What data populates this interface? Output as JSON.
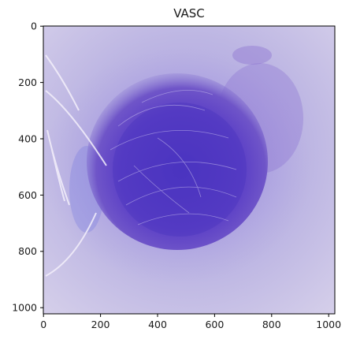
{
  "figure": {
    "title": "VASC",
    "subject": "dermoscopic-lesion",
    "colors": {
      "background": "#bdb6e0",
      "lesion_outer": "#6b4fc9",
      "lesion_core": "#4a35c0",
      "frame": "#000000"
    }
  },
  "axes": {
    "x": {
      "range": [
        0,
        1022
      ],
      "ticks": [
        0,
        200,
        400,
        600,
        800,
        1000
      ]
    },
    "y": {
      "range": [
        0,
        1022
      ],
      "ticks": [
        0,
        200,
        400,
        600,
        800,
        1000
      ],
      "inverted": true
    }
  }
}
